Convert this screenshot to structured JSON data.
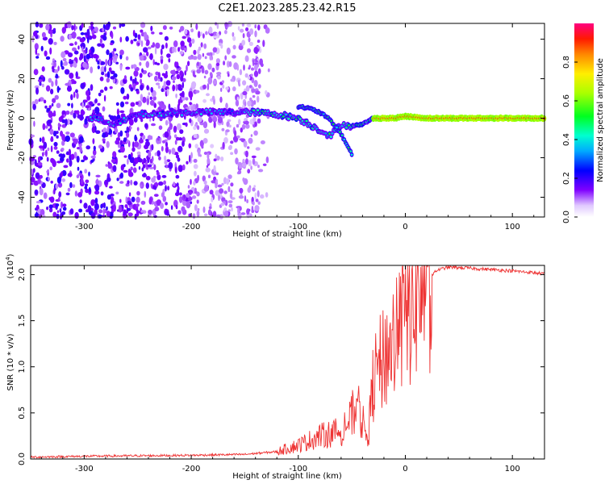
{
  "title": "C2E1.2023.285.23.42.R15",
  "chart_data": [
    {
      "type": "heatmap",
      "title": "C2E1.2023.285.23.42.R15",
      "xlabel": "Height of straight line (km)",
      "ylabel": "Frequency (Hz)",
      "xlim": [
        -350,
        130
      ],
      "ylim": [
        -50,
        48
      ],
      "xticks": [
        -300,
        -200,
        -100,
        0,
        100
      ],
      "yticks": [
        -40,
        -20,
        0,
        20,
        40
      ],
      "colorbar": {
        "label": "Normalized spectral amplitude",
        "range": [
          0.0,
          1.0
        ],
        "ticks": [
          0.0,
          0.2,
          0.4,
          0.6,
          0.8
        ]
      },
      "ridge": {
        "x": [
          -290,
          -270,
          -250,
          -230,
          -200,
          -170,
          -140,
          -120,
          -100,
          -90,
          -80,
          -70,
          -60,
          -50,
          -40,
          -30,
          -20,
          -10,
          0,
          20,
          60,
          100,
          130
        ],
        "y": [
          0,
          -3,
          2,
          2,
          3,
          3,
          3,
          2,
          0,
          -3,
          -6,
          -9,
          -3,
          -4,
          -3,
          0,
          0,
          0,
          1,
          0,
          0,
          0,
          0
        ]
      },
      "branch": {
        "x": [
          -100,
          -90,
          -80,
          -70,
          -60,
          -50
        ],
        "y": [
          6,
          5,
          3,
          -1,
          -8,
          -18
        ]
      }
    },
    {
      "type": "line",
      "xlabel": "Height of straight line (km)",
      "ylabel": "SNR (10 * v/v)",
      "y_multiplier": "(x10",
      "y_multiplier_exp": "4",
      "y_multiplier_close": ")",
      "xlim": [
        -350,
        130
      ],
      "ylim": [
        0.0,
        2.1
      ],
      "xticks": [
        -300,
        -200,
        -100,
        0,
        100
      ],
      "yticks": [
        0.0,
        0.5,
        1.0,
        1.5,
        2.0
      ],
      "line_color": "#ee3333",
      "envelope_x": [
        -350,
        -300,
        -200,
        -150,
        -120,
        -100,
        -80,
        -60,
        -50,
        -45,
        -40,
        -35,
        -30,
        -20,
        -10,
        0,
        10,
        20,
        30,
        40,
        60,
        100,
        130
      ],
      "envelope_y": [
        0.02,
        0.03,
        0.04,
        0.05,
        0.08,
        0.15,
        0.25,
        0.3,
        0.45,
        0.6,
        0.4,
        0.2,
        0.85,
        1.1,
        1.3,
        1.55,
        1.8,
        1.95,
        2.05,
        2.08,
        2.07,
        2.04,
        2.01
      ]
    }
  ]
}
